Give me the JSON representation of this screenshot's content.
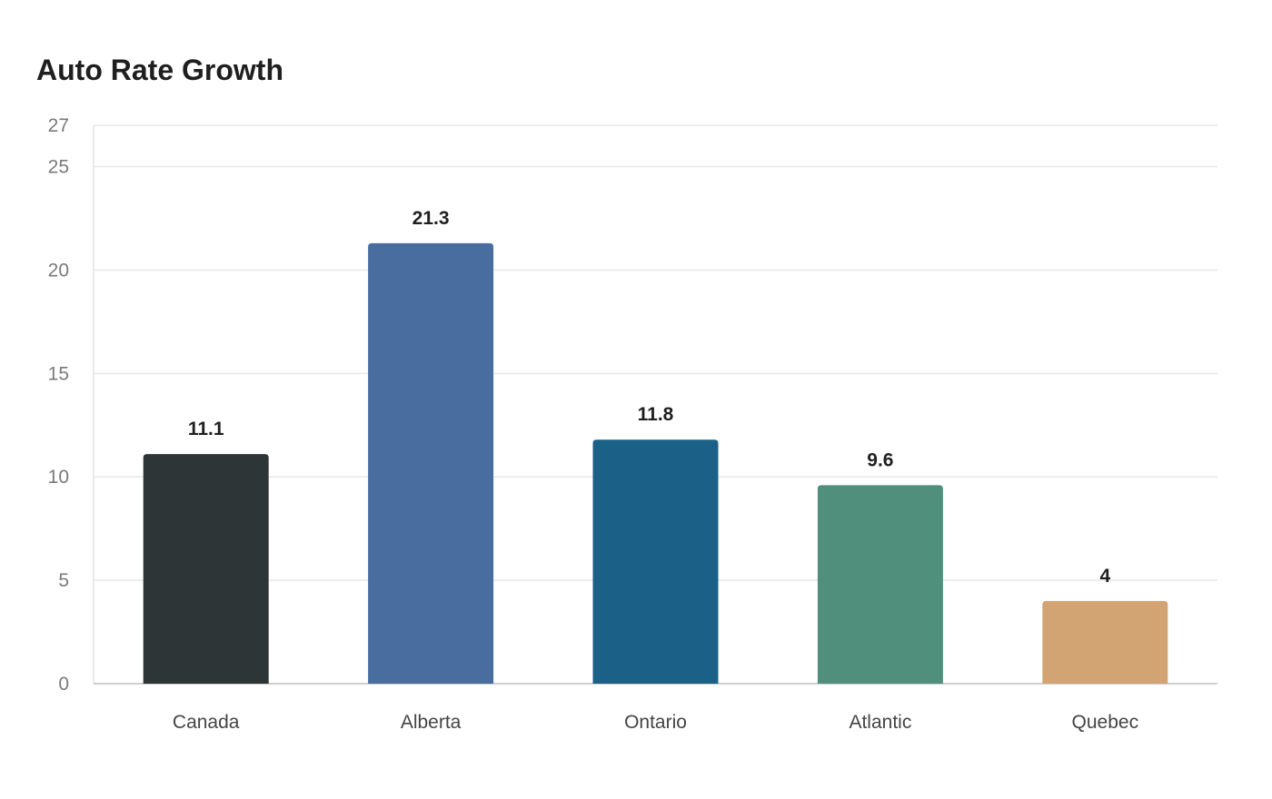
{
  "chart_data": {
    "type": "bar",
    "title": "Auto Rate Growth",
    "xlabel": "",
    "ylabel": "",
    "categories": [
      "Canada",
      "Alberta",
      "Ontario",
      "Atlantic",
      "Quebec"
    ],
    "values": [
      11.1,
      21.3,
      11.8,
      9.6,
      4
    ],
    "data_labels": [
      "11.1",
      "21.3",
      "11.8",
      "9.6",
      "4"
    ],
    "colors": [
      "#2e3537",
      "#4a6da0",
      "#1a6087",
      "#4f8f7c",
      "#d2a474"
    ],
    "ylim": [
      0,
      27
    ],
    "yticks": [
      0,
      5,
      10,
      15,
      20,
      25,
      27
    ],
    "grid": true,
    "legend": "none"
  }
}
